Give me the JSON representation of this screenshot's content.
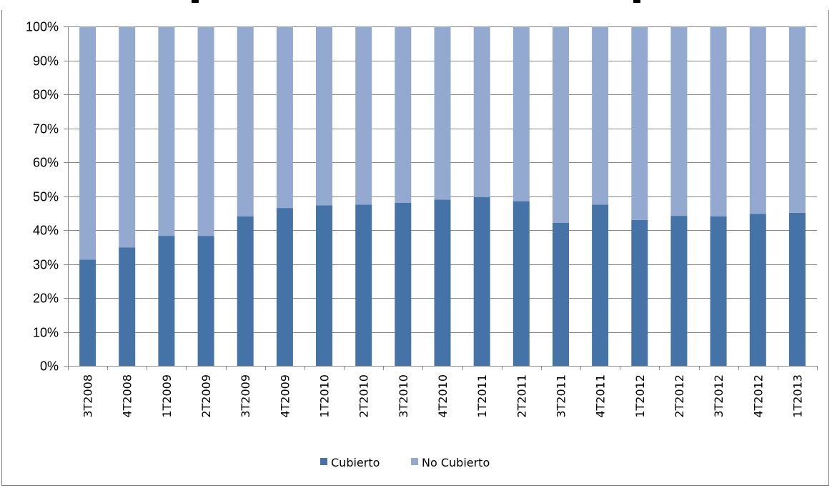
{
  "chart_data": {
    "type": "bar",
    "stacked": "percent",
    "title": "",
    "xlabel": "",
    "ylabel": "",
    "ylim": [
      0,
      100
    ],
    "y_ticks": [
      "0%",
      "10%",
      "20%",
      "30%",
      "40%",
      "50%",
      "60%",
      "70%",
      "80%",
      "90%",
      "100%"
    ],
    "grid": true,
    "legend_position": "bottom",
    "categories": [
      "3T2008",
      "4T2008",
      "1T2009",
      "2T2009",
      "3T2009",
      "4T2009",
      "1T2010",
      "2T2010",
      "3T2010",
      "4T2010",
      "1T2011",
      "2T2011",
      "3T2011",
      "4T2011",
      "1T2012",
      "2T2012",
      "3T2012",
      "4T2012",
      "1T2013"
    ],
    "series": [
      {
        "name": "Cubierto",
        "color": "#4572a7",
        "values": [
          31.3,
          34.9,
          38.3,
          38.3,
          44.0,
          46.5,
          47.3,
          47.5,
          48.0,
          49.0,
          49.7,
          48.5,
          42.1,
          47.5,
          43.0,
          44.2,
          44.0,
          44.8,
          45.1
        ]
      },
      {
        "name": "No Cubierto",
        "color": "#93a9cf",
        "values": [
          68.7,
          65.1,
          61.7,
          61.7,
          56.0,
          53.5,
          52.7,
          52.5,
          52.0,
          51.0,
          50.3,
          51.5,
          57.9,
          52.5,
          57.0,
          55.8,
          56.0,
          55.2,
          54.9
        ]
      }
    ]
  }
}
